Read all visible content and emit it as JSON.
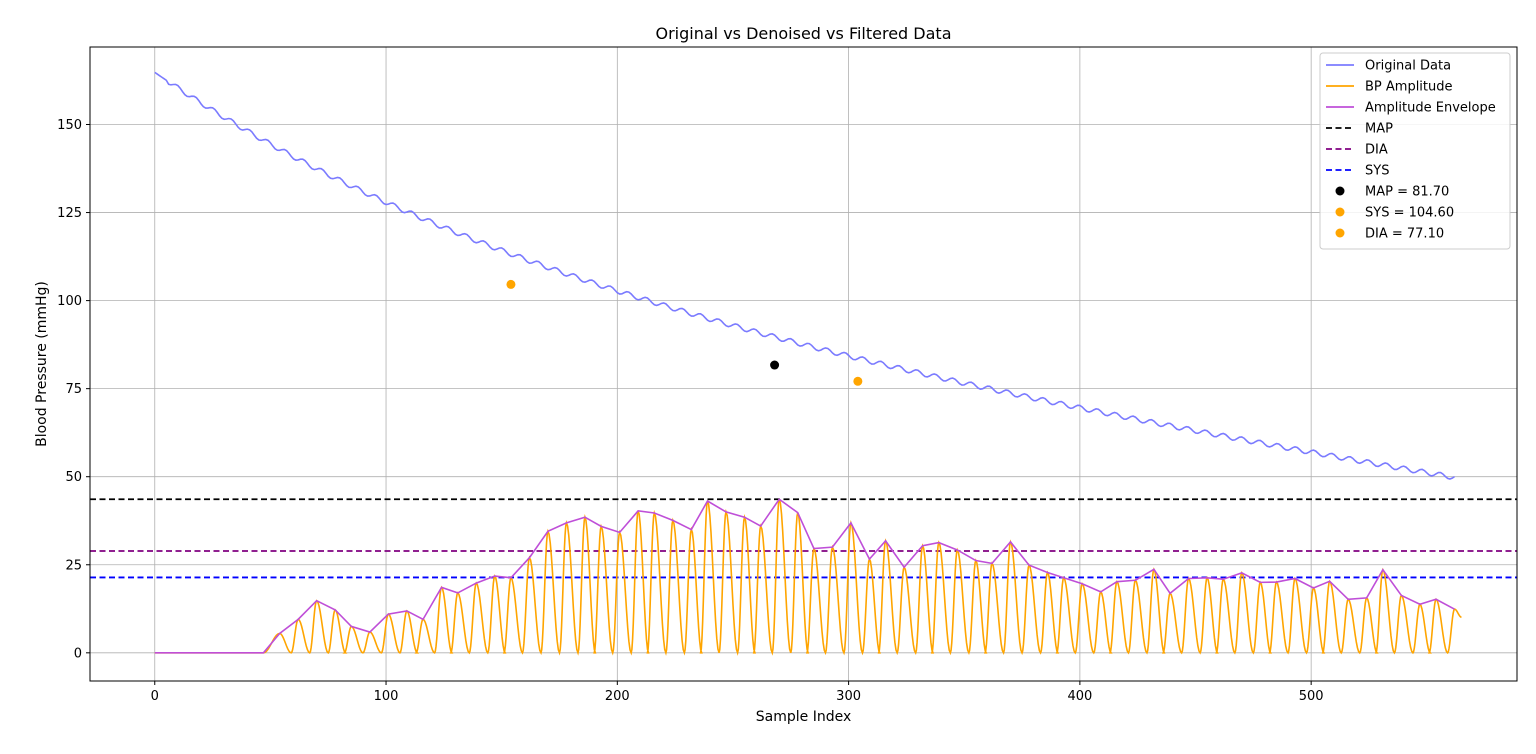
{
  "chart_data": {
    "type": "line",
    "title": "Original vs Denoised vs Filtered Data",
    "xlabel": "Sample Index",
    "ylabel": "Blood Pressure (mmHg)",
    "xlim": [
      -28,
      589
    ],
    "ylim": [
      -8,
      172
    ],
    "xticks": [
      0,
      100,
      200,
      300,
      400,
      500
    ],
    "yticks": [
      0,
      25,
      50,
      75,
      100,
      125,
      150
    ],
    "grid": true,
    "legend_position": "top-right",
    "colors": {
      "original": "#7b7bff",
      "amplitude": "#ffa500",
      "envelope": "#bf4fd8",
      "map_line": "#000000",
      "dia_line": "#800080",
      "sys_line": "#0000ff",
      "map_point": "#000000",
      "sys_point": "#ffa500",
      "dia_point": "#ffa500"
    },
    "legend": [
      {
        "label": "Original Data",
        "kind": "line",
        "color": "#7b7bff"
      },
      {
        "label": "BP Amplitude",
        "kind": "line",
        "color": "#ffa500"
      },
      {
        "label": "Amplitude Envelope",
        "kind": "line",
        "color": "#bf4fd8"
      },
      {
        "label": "MAP",
        "kind": "dashed",
        "color": "#000000"
      },
      {
        "label": "DIA",
        "kind": "dashed",
        "color": "#800080"
      },
      {
        "label": "SYS",
        "kind": "dashed",
        "color": "#0000ff"
      },
      {
        "label": "MAP = 81.70",
        "kind": "marker",
        "color": "#000000"
      },
      {
        "label": "SYS = 104.60",
        "kind": "marker",
        "color": "#ffa500"
      },
      {
        "label": "DIA = 77.10",
        "kind": "marker",
        "color": "#ffa500"
      }
    ],
    "hlines": [
      {
        "name": "MAP",
        "y": 43.6,
        "color": "#000000"
      },
      {
        "name": "DIA",
        "y": 28.9,
        "color": "#800080"
      },
      {
        "name": "SYS",
        "y": 21.4,
        "color": "#0000ff"
      }
    ],
    "points": [
      {
        "name": "MAP = 81.70",
        "x": 268,
        "y": 81.7,
        "color": "#000000"
      },
      {
        "name": "SYS = 104.60",
        "x": 154,
        "y": 104.6,
        "color": "#ffa500"
      },
      {
        "name": "DIA = 77.10",
        "x": 304,
        "y": 77.1,
        "color": "#ffa500"
      }
    ],
    "original_data": {
      "x_start": 0,
      "x_end": 562,
      "y_start": 164.8,
      "y_end": 49.8,
      "pulse_period": 7.8,
      "ripple": 0.7
    },
    "bp_amplitude": {
      "series_name": "BP Amplitude",
      "onset_x": 47,
      "peaks": [
        {
          "x": 54,
          "y": 5.5
        },
        {
          "x": 62,
          "y": 9.5
        },
        {
          "x": 70,
          "y": 14.8
        },
        {
          "x": 78,
          "y": 12.2
        },
        {
          "x": 85,
          "y": 7.5
        },
        {
          "x": 93,
          "y": 5.9
        },
        {
          "x": 101,
          "y": 11.0
        },
        {
          "x": 109,
          "y": 11.9
        },
        {
          "x": 116,
          "y": 9.5
        },
        {
          "x": 124,
          "y": 18.6
        },
        {
          "x": 131,
          "y": 17.0
        },
        {
          "x": 139,
          "y": 19.8
        },
        {
          "x": 147,
          "y": 21.8
        },
        {
          "x": 154,
          "y": 21.3
        },
        {
          "x": 162,
          "y": 27.0
        },
        {
          "x": 170,
          "y": 34.5
        },
        {
          "x": 178,
          "y": 36.9
        },
        {
          "x": 186,
          "y": 38.5
        },
        {
          "x": 193,
          "y": 35.9
        },
        {
          "x": 201,
          "y": 34.2
        },
        {
          "x": 209,
          "y": 40.3
        },
        {
          "x": 216,
          "y": 39.7
        },
        {
          "x": 224,
          "y": 37.6
        },
        {
          "x": 232,
          "y": 35.0
        },
        {
          "x": 239,
          "y": 43.1
        },
        {
          "x": 247,
          "y": 40.0
        },
        {
          "x": 255,
          "y": 38.5
        },
        {
          "x": 262,
          "y": 36.0
        },
        {
          "x": 270,
          "y": 43.6
        },
        {
          "x": 278,
          "y": 39.8
        },
        {
          "x": 285,
          "y": 29.6
        },
        {
          "x": 293,
          "y": 30.0
        },
        {
          "x": 301,
          "y": 36.9
        },
        {
          "x": 309,
          "y": 26.6
        },
        {
          "x": 316,
          "y": 31.8
        },
        {
          "x": 324,
          "y": 24.3
        },
        {
          "x": 332,
          "y": 30.4
        },
        {
          "x": 339,
          "y": 31.3
        },
        {
          "x": 347,
          "y": 29.2
        },
        {
          "x": 355,
          "y": 26.2
        },
        {
          "x": 362,
          "y": 25.4
        },
        {
          "x": 370,
          "y": 31.5
        },
        {
          "x": 378,
          "y": 24.9
        },
        {
          "x": 386,
          "y": 22.8
        },
        {
          "x": 393,
          "y": 21.3
        },
        {
          "x": 401,
          "y": 19.6
        },
        {
          "x": 409,
          "y": 17.3
        },
        {
          "x": 416,
          "y": 20.2
        },
        {
          "x": 424,
          "y": 20.6
        },
        {
          "x": 432,
          "y": 23.7
        },
        {
          "x": 439,
          "y": 16.9
        },
        {
          "x": 447,
          "y": 21.1
        },
        {
          "x": 455,
          "y": 21.3
        },
        {
          "x": 462,
          "y": 20.9
        },
        {
          "x": 470,
          "y": 22.7
        },
        {
          "x": 478,
          "y": 20.0
        },
        {
          "x": 485,
          "y": 20.1
        },
        {
          "x": 493,
          "y": 21.1
        },
        {
          "x": 501,
          "y": 18.4
        },
        {
          "x": 508,
          "y": 20.3
        },
        {
          "x": 516,
          "y": 15.2
        },
        {
          "x": 524,
          "y": 15.6
        },
        {
          "x": 531,
          "y": 23.6
        },
        {
          "x": 539,
          "y": 16.3
        },
        {
          "x": 547,
          "y": 13.8
        },
        {
          "x": 554,
          "y": 15.2
        },
        {
          "x": 562,
          "y": 12.4
        }
      ],
      "end_value": 10.1
    }
  }
}
